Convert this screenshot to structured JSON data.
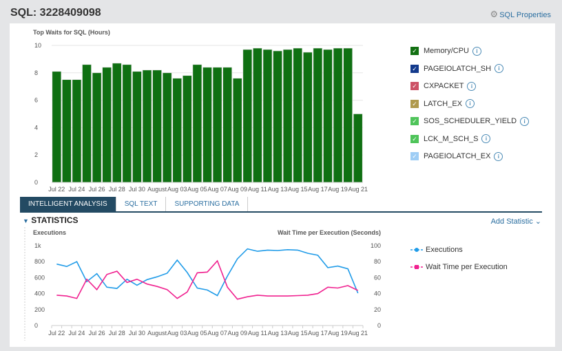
{
  "header": {
    "title": "SQL: 3228409098",
    "properties_label": "SQL Properties",
    "properties_icon": "gear-icon"
  },
  "waits_chart": {
    "type": "bar",
    "title": "Top Waits for SQL (Hours)",
    "ylim": [
      0,
      10
    ],
    "yticks": [
      "0",
      "2",
      "4",
      "6",
      "8",
      "10"
    ],
    "color": "#0f7012",
    "xticks": [
      "Jul 22",
      "Jul 24",
      "Jul 26",
      "Jul 28",
      "Jul 30",
      "August",
      "Aug 03",
      "Aug 05",
      "Aug 07",
      "Aug 09",
      "Aug 11",
      "Aug 13",
      "Aug 15",
      "Aug 17",
      "Aug 19",
      "Aug 21"
    ],
    "values": [
      8.1,
      7.5,
      7.5,
      8.6,
      8.0,
      8.4,
      8.7,
      8.6,
      8.1,
      8.2,
      8.2,
      8.0,
      7.6,
      7.8,
      8.6,
      8.4,
      8.4,
      8.4,
      7.6,
      9.7,
      9.8,
      9.7,
      9.6,
      9.7,
      9.8,
      9.5,
      9.8,
      9.7,
      9.8,
      9.8,
      5.0
    ],
    "series_name": "Memory/CPU"
  },
  "legend": [
    {
      "label": "Memory/CPU",
      "color": "#127012"
    },
    {
      "label": "PAGEIOLATCH_SH",
      "color": "#133a8c"
    },
    {
      "label": "CXPACKET",
      "color": "#cc5266"
    },
    {
      "label": "LATCH_EX",
      "color": "#b09a4e"
    },
    {
      "label": "SOS_SCHEDULER_YIELD",
      "color": "#4fc45a"
    },
    {
      "label": "LCK_M_SCH_S",
      "color": "#4fc45a"
    },
    {
      "label": "PAGEIOLATCH_EX",
      "color": "#9ecdf5"
    }
  ],
  "tabs": [
    {
      "label": "INTELLIGENT ANALYSIS",
      "active": true
    },
    {
      "label": "SQL TEXT"
    },
    {
      "label": "SUPPORTING DATA"
    }
  ],
  "statistics": {
    "title": "STATISTICS",
    "add_label": "Add Statistic"
  },
  "chart_data": {
    "type": "line",
    "ylabel_left": "Executions",
    "ylabel_right": "Wait Time per Execution (Seconds)",
    "yticks_left": [
      "0",
      "200",
      "400",
      "600",
      "800",
      "1k"
    ],
    "ylim_left": [
      0,
      1000
    ],
    "yticks_right": [
      "0",
      "20",
      "40",
      "60",
      "80",
      "100"
    ],
    "ylim_right": [
      0,
      100
    ],
    "xticks": [
      "Jul 22",
      "Jul 24",
      "Jul 26",
      "Jul 28",
      "Jul 30",
      "August",
      "Aug 03",
      "Aug 05",
      "Aug 07",
      "Aug 09",
      "Aug 11",
      "Aug 13",
      "Aug 15",
      "Aug 17",
      "Aug 19",
      "Aug 21"
    ],
    "series": [
      {
        "name": "Executions",
        "axis": "left",
        "color": "#1f9be8",
        "values": [
          770,
          740,
          800,
          550,
          650,
          480,
          465,
          580,
          505,
          575,
          610,
          655,
          820,
          665,
          470,
          445,
          375,
          620,
          835,
          960,
          930,
          945,
          940,
          950,
          945,
          905,
          880,
          725,
          745,
          710,
          405
        ]
      },
      {
        "name": "Wait Time per Execution",
        "axis": "right",
        "color": "#f0208f",
        "values": [
          38,
          37,
          34,
          58,
          45,
          64,
          68,
          54,
          58,
          52,
          49,
          45,
          34,
          42,
          66,
          67,
          81,
          48,
          33,
          36,
          38,
          37,
          37,
          37,
          37.5,
          38,
          40,
          48,
          47,
          50,
          44
        ]
      }
    ]
  }
}
